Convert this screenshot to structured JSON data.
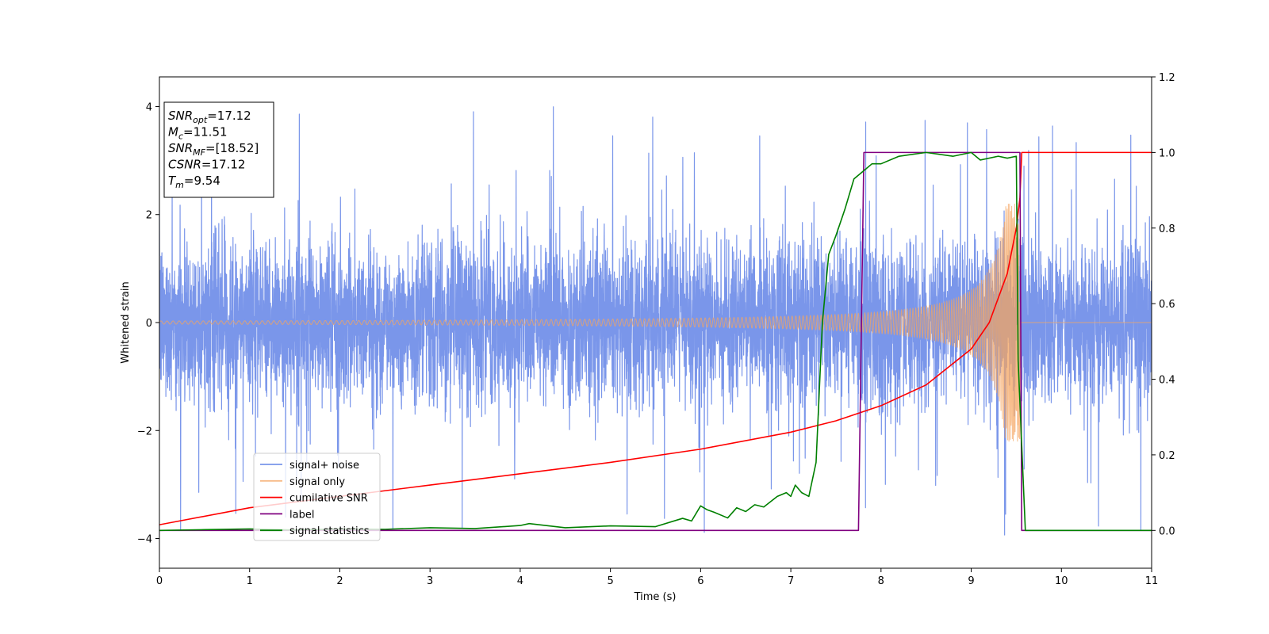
{
  "chart_data": {
    "type": "line",
    "xlabel": "Time (s)",
    "ylabel_left": "Whitened strain",
    "ylabel_right": "",
    "xlim": [
      0,
      11
    ],
    "ylim_left": [
      -4.55,
      4.55
    ],
    "ylim_right": [
      -0.1,
      1.2
    ],
    "x_ticks": [
      0,
      1,
      2,
      3,
      4,
      5,
      6,
      7,
      8,
      9,
      10,
      11
    ],
    "y_ticks_left": [
      -4,
      -2,
      0,
      2,
      4
    ],
    "y_ticks_right": [
      0.0,
      0.2,
      0.4,
      0.6,
      0.8,
      1.0,
      1.2
    ],
    "grid": false,
    "legend_position": "lower-left",
    "info_box": {
      "lines": [
        {
          "base": "SNR",
          "sub": "opt",
          "value": "=17.12"
        },
        {
          "base": "M",
          "sub": "c",
          "value": "=11.51"
        },
        {
          "base": "SNR",
          "sub": "MF",
          "value": "=[18.52]"
        },
        {
          "base": "CSNR",
          "sub": "",
          "value": "=17.12"
        },
        {
          "base": "T",
          "sub": "m",
          "value": "=9.54"
        }
      ]
    },
    "series": [
      {
        "name": "signal+ noise",
        "color": "#4169e1",
        "axis": "left",
        "kind": "noise",
        "noise_std": 0.75,
        "spike_max": 4.0,
        "x_end": 11.0
      },
      {
        "name": "signal only",
        "color": "#f4a460",
        "axis": "left",
        "kind": "chirp",
        "amplitude_start": 0.03,
        "amplitude_peak": 2.2,
        "merger_time": 9.54
      },
      {
        "name": "cumilative SNR",
        "color": "#ff0000",
        "axis": "right",
        "x": [
          0,
          1,
          2,
          3,
          4,
          5,
          6,
          7,
          7.5,
          8,
          8.5,
          9,
          9.2,
          9.4,
          9.5,
          9.54,
          9.56,
          11
        ],
        "y": [
          0.015,
          0.06,
          0.09,
          0.12,
          0.15,
          0.18,
          0.215,
          0.26,
          0.29,
          0.33,
          0.385,
          0.48,
          0.55,
          0.68,
          0.8,
          0.88,
          1.0,
          1.0
        ]
      },
      {
        "name": "label",
        "color": "#800080",
        "axis": "right",
        "x": [
          0,
          7.75,
          7.81,
          9.54,
          9.56,
          11
        ],
        "y": [
          0.0,
          0.0,
          1.0,
          1.0,
          0.0,
          0.0
        ]
      },
      {
        "name": "signal statistics",
        "color": "#008000",
        "axis": "right",
        "x": [
          0,
          0.5,
          1,
          1.5,
          2,
          2.5,
          3,
          3.5,
          4,
          4.1,
          4.5,
          5,
          5.5,
          5.8,
          5.9,
          6.0,
          6.07,
          6.15,
          6.3,
          6.4,
          6.5,
          6.6,
          6.7,
          6.85,
          6.95,
          7.0,
          7.05,
          7.12,
          7.2,
          7.28,
          7.35,
          7.42,
          7.5,
          7.6,
          7.7,
          7.8,
          7.9,
          8.0,
          8.2,
          8.5,
          8.8,
          9.0,
          9.1,
          9.3,
          9.4,
          9.5,
          9.52,
          9.6,
          11
        ],
        "y": [
          0.0,
          0.002,
          0.004,
          0.001,
          0.004,
          0.003,
          0.007,
          0.005,
          0.013,
          0.018,
          0.007,
          0.012,
          0.01,
          0.032,
          0.025,
          0.065,
          0.055,
          0.048,
          0.033,
          0.06,
          0.05,
          0.068,
          0.062,
          0.09,
          0.1,
          0.09,
          0.12,
          0.1,
          0.09,
          0.18,
          0.55,
          0.73,
          0.78,
          0.85,
          0.93,
          0.95,
          0.97,
          0.97,
          0.99,
          1.0,
          0.99,
          1.0,
          0.98,
          0.99,
          0.985,
          0.99,
          0.45,
          0.0,
          0.0
        ]
      }
    ]
  }
}
